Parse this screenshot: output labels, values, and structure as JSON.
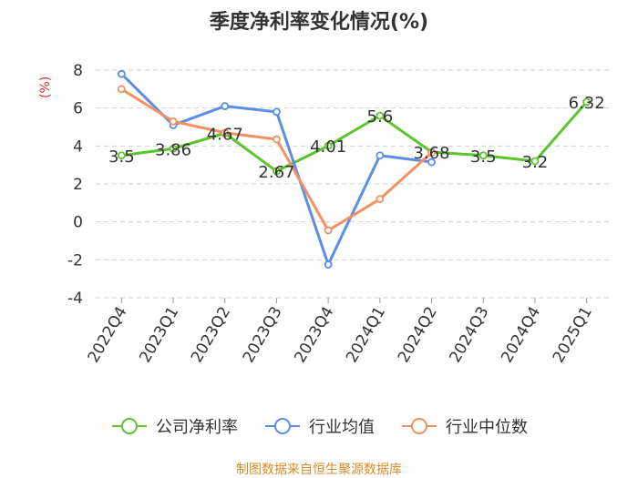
{
  "chart_data": {
    "type": "line",
    "title": "季度净利率变化情况(%)",
    "ylabel": "(%)",
    "xlabel": "",
    "categories": [
      "2022Q4",
      "2023Q1",
      "2023Q2",
      "2023Q3",
      "2023Q4",
      "2024Q1",
      "2024Q2",
      "2024Q3",
      "2024Q4",
      "2025Q1"
    ],
    "ylim": [
      -4,
      8
    ],
    "yticks": [
      -4,
      -2,
      0,
      2,
      4,
      6,
      8
    ],
    "grid": true,
    "legend_position": "bottom",
    "series": [
      {
        "name": "公司净利率",
        "color": "#5cc42d",
        "show_labels": true,
        "values": [
          3.5,
          3.86,
          4.67,
          2.67,
          4.01,
          5.6,
          3.68,
          3.5,
          3.2,
          6.32
        ]
      },
      {
        "name": "行业均值",
        "color": "#5b8ee6",
        "show_labels": false,
        "values": [
          7.8,
          5.1,
          6.1,
          5.8,
          -2.25,
          3.5,
          3.15,
          null,
          null,
          null
        ]
      },
      {
        "name": "行业中位数",
        "color": "#f39162",
        "show_labels": false,
        "values": [
          7.0,
          5.3,
          4.7,
          4.35,
          -0.45,
          1.2,
          3.65,
          null,
          null,
          null
        ]
      }
    ]
  },
  "source": "制图数据来自恒生聚源数据库"
}
